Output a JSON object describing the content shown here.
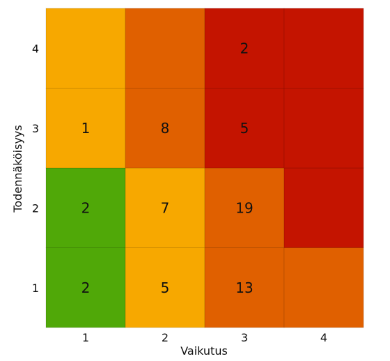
{
  "chart_data": {
    "type": "heatmap",
    "xlabel": "Vaikutus",
    "ylabel": "Todennäköisyys",
    "x_categories": [
      "1",
      "2",
      "3",
      "4"
    ],
    "y_categories": [
      "1",
      "2",
      "3",
      "4"
    ],
    "colors": {
      "green": "#50a808",
      "yellow": "#f7a800",
      "orange": "#e06000",
      "red": "#c41400"
    },
    "cells": [
      {
        "x": "1",
        "y": "1",
        "level": "green",
        "label": "2"
      },
      {
        "x": "2",
        "y": "1",
        "level": "yellow",
        "label": "5"
      },
      {
        "x": "3",
        "y": "1",
        "level": "orange",
        "label": "13"
      },
      {
        "x": "4",
        "y": "1",
        "level": "orange",
        "label": ""
      },
      {
        "x": "1",
        "y": "2",
        "level": "green",
        "label": "2"
      },
      {
        "x": "2",
        "y": "2",
        "level": "yellow",
        "label": "7"
      },
      {
        "x": "3",
        "y": "2",
        "level": "orange",
        "label": "19"
      },
      {
        "x": "4",
        "y": "2",
        "level": "red",
        "label": ""
      },
      {
        "x": "1",
        "y": "3",
        "level": "yellow",
        "label": "1"
      },
      {
        "x": "2",
        "y": "3",
        "level": "orange",
        "label": "8"
      },
      {
        "x": "3",
        "y": "3",
        "level": "red",
        "label": "5"
      },
      {
        "x": "4",
        "y": "3",
        "level": "red",
        "label": ""
      },
      {
        "x": "1",
        "y": "4",
        "level": "yellow",
        "label": ""
      },
      {
        "x": "2",
        "y": "4",
        "level": "orange",
        "label": ""
      },
      {
        "x": "3",
        "y": "4",
        "level": "red",
        "label": "2"
      },
      {
        "x": "4",
        "y": "4",
        "level": "red",
        "label": ""
      }
    ]
  }
}
